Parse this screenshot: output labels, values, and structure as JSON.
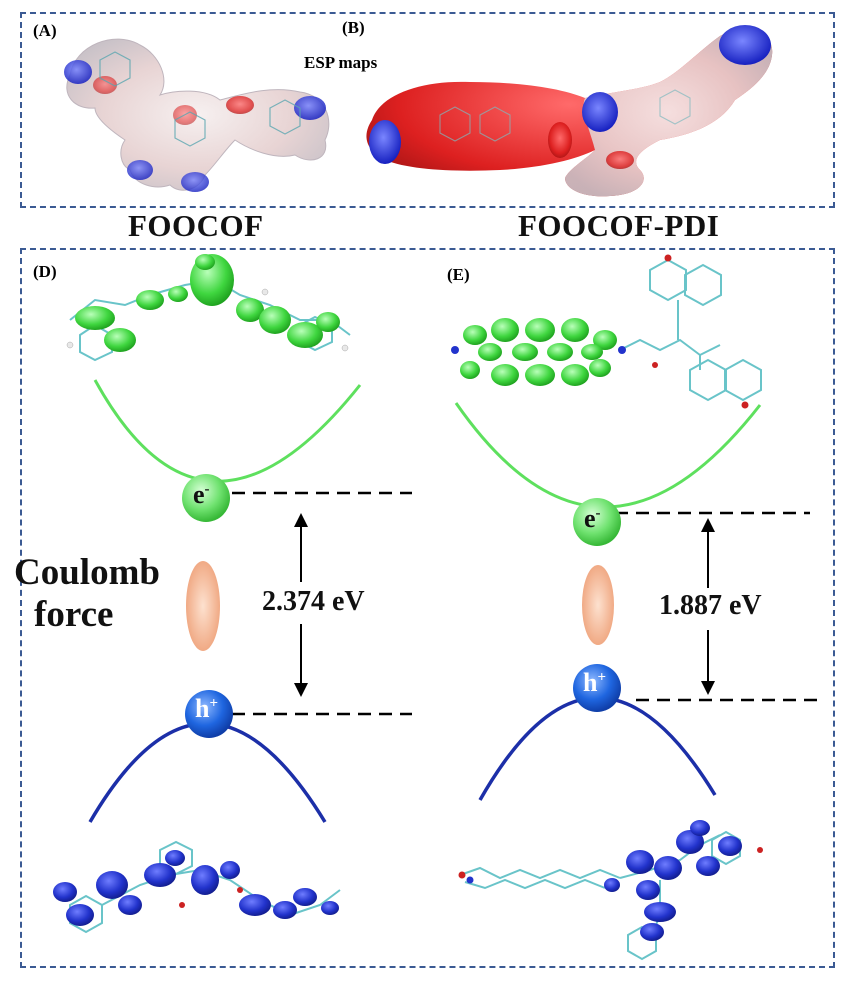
{
  "panels": {
    "a_letter": "(A)",
    "b_letter": "(B)",
    "d_letter": "(D)",
    "e_letter": "(E)"
  },
  "esp_label": "ESP maps",
  "labels": {
    "foocof": "FOOCOF",
    "foocof_pdi": "FOOCOF-PDI"
  },
  "coulomb_line1": "Coulomb",
  "coulomb_line2": "force",
  "energy_left": "2.374 eV",
  "energy_right": "1.887 eV",
  "electron_symbol": "e",
  "electron_sup": "-",
  "hole_symbol": "h",
  "hole_sup": "+",
  "colors": {
    "frame": "#3b5a93",
    "conduction_curve": "#5ee05e",
    "valence_curve": "#1c2fa8",
    "electron_ball": "#74e474",
    "hole_ball": "#1d63d8",
    "orbital_green": "#3fd63f",
    "orbital_blue": "#2233cc",
    "ellipse": "#f3b08c"
  }
}
